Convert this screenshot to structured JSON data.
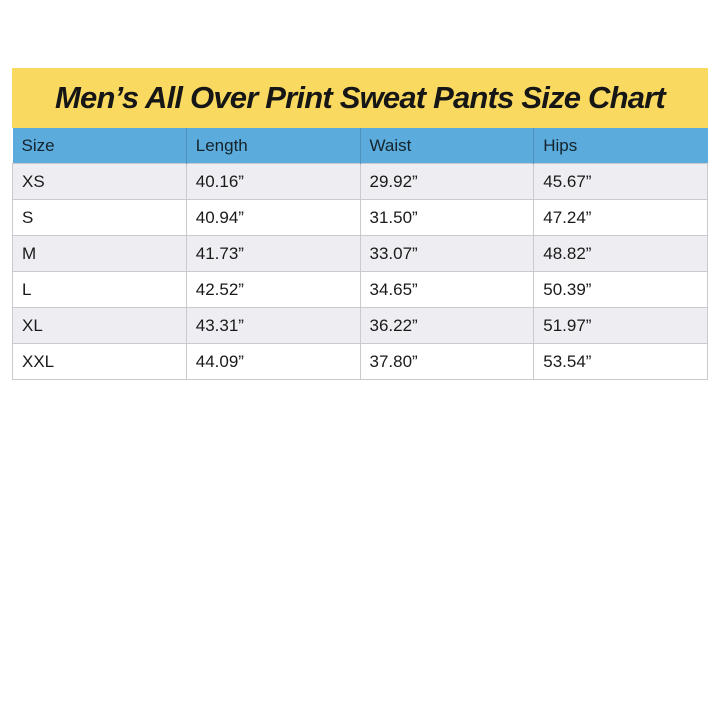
{
  "banner": {
    "title": "Men’s All Over Print Sweat Pants Size Chart",
    "background": "#F9D95F",
    "text_color": "#161616"
  },
  "table": {
    "columns": [
      "Size",
      "Length",
      "Waist",
      "Hips"
    ],
    "rows": [
      {
        "size": "XS",
        "length": "40.16”",
        "waist": "29.92”",
        "hips": "45.67”"
      },
      {
        "size": "S",
        "length": "40.94”",
        "waist": "31.50”",
        "hips": "47.24”"
      },
      {
        "size": "M",
        "length": "41.73”",
        "waist": "33.07”",
        "hips": "48.82”"
      },
      {
        "size": "L",
        "length": "42.52”",
        "waist": "34.65”",
        "hips": "50.39”"
      },
      {
        "size": "XL",
        "length": "43.31”",
        "waist": "36.22”",
        "hips": "51.97”"
      },
      {
        "size": "XXL",
        "length": "44.09”",
        "waist": "37.80”",
        "hips": "53.54”"
      }
    ],
    "colors": {
      "page_background": "#FFFFFF",
      "header_background": "#5BACDC",
      "alt_row_background": "#EEEDF2",
      "row_background": "#FFFFFF",
      "grid_border": "#C9CACE",
      "cell_text": "#1A1A1A"
    }
  },
  "chart_data": {
    "type": "table",
    "title": "Men’s All Over Print Sweat Pants Size Chart",
    "columns": [
      "Size",
      "Length",
      "Waist",
      "Hips"
    ],
    "rows": [
      [
        "XS",
        "40.16”",
        "29.92”",
        "45.67”"
      ],
      [
        "S",
        "40.94”",
        "31.50”",
        "47.24”"
      ],
      [
        "M",
        "41.73”",
        "33.07”",
        "48.82”"
      ],
      [
        "L",
        "42.52”",
        "34.65”",
        "50.39”"
      ],
      [
        "XL",
        "43.31”",
        "36.22”",
        "51.97”"
      ],
      [
        "XXL",
        "44.09”",
        "37.80”",
        "53.54”"
      ]
    ]
  }
}
